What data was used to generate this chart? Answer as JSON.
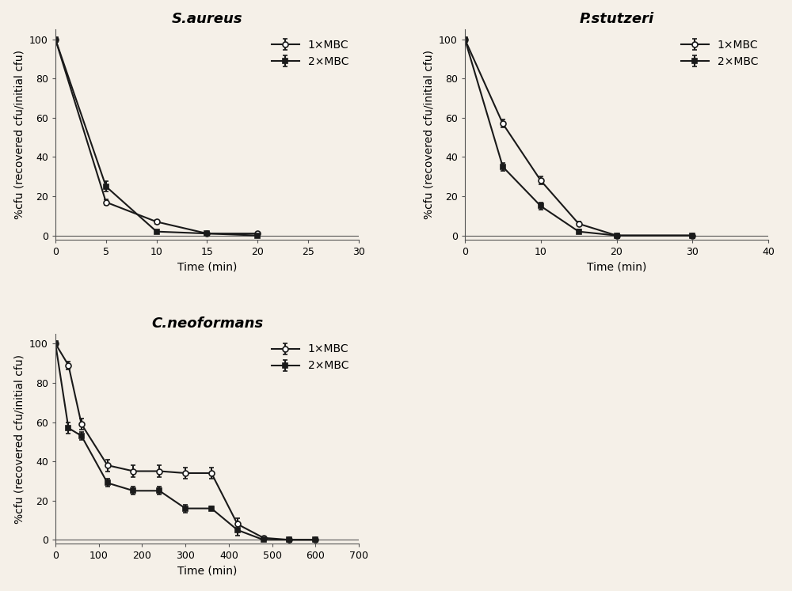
{
  "bg_color": "#f5f0e8",
  "line_color": "#1a1a1a",
  "saureus": {
    "title": "S.aureus",
    "xlabel": "Time (min)",
    "ylabel": "%cfu (recovered cfu/initial cfu)",
    "xlim": [
      0,
      30
    ],
    "ylim": [
      -2,
      105
    ],
    "xticks": [
      0,
      5,
      10,
      15,
      20,
      25,
      30
    ],
    "yticks": [
      0,
      20,
      40,
      60,
      80,
      100
    ],
    "x1mbc": [
      0,
      5,
      10,
      15,
      20
    ],
    "y1mbc": [
      100,
      17,
      7,
      1,
      1
    ],
    "x2mbc": [
      0,
      5,
      10,
      15,
      20
    ],
    "y2mbc": [
      100,
      25,
      2,
      1,
      0
    ],
    "yerr1mbc": [
      0,
      1.5,
      1,
      0.5,
      0.5
    ],
    "yerr2mbc": [
      0,
      2.5,
      0.5,
      0.5,
      0
    ]
  },
  "pstutzeri": {
    "title": "P.stutzeri",
    "xlabel": "Time (min)",
    "ylabel": "%cfu (recovered cfu/initial cfu)",
    "xlim": [
      0,
      40
    ],
    "ylim": [
      -2,
      105
    ],
    "xticks": [
      0,
      10,
      20,
      30,
      40
    ],
    "yticks": [
      0,
      20,
      40,
      60,
      80,
      100
    ],
    "x1mbc": [
      0,
      5,
      10,
      15,
      20,
      30
    ],
    "y1mbc": [
      100,
      57,
      28,
      6,
      0,
      0
    ],
    "x2mbc": [
      0,
      5,
      10,
      15,
      20,
      30
    ],
    "y2mbc": [
      100,
      35,
      15,
      2,
      0,
      0
    ],
    "yerr1mbc": [
      0,
      2,
      2,
      1,
      0,
      0
    ],
    "yerr2mbc": [
      0,
      2,
      2,
      1,
      0,
      0
    ]
  },
  "cneoformans": {
    "title": "C.neoformans",
    "xlabel": "Time (min)",
    "ylabel": "%cfu (recovered cfu/initial cfu)",
    "xlim": [
      0,
      700
    ],
    "ylim": [
      -2,
      105
    ],
    "xticks": [
      0,
      100,
      200,
      300,
      400,
      500,
      600,
      700
    ],
    "yticks": [
      0,
      20,
      40,
      60,
      80,
      100
    ],
    "x1mbc": [
      0,
      30,
      60,
      120,
      180,
      240,
      300,
      360,
      420,
      480,
      540,
      600
    ],
    "y1mbc": [
      100,
      89,
      59,
      38,
      35,
      35,
      34,
      34,
      8,
      1,
      0,
      0
    ],
    "x2mbc": [
      0,
      30,
      60,
      120,
      180,
      240,
      300,
      360,
      420,
      480,
      540,
      600
    ],
    "y2mbc": [
      100,
      57,
      53,
      29,
      25,
      25,
      16,
      16,
      5,
      0,
      0,
      0
    ],
    "yerr1mbc": [
      0,
      2,
      3,
      3,
      3,
      3,
      3,
      3,
      3,
      0.5,
      0,
      0
    ],
    "yerr2mbc": [
      0,
      3,
      2,
      2,
      2,
      2,
      2,
      1,
      3,
      0,
      0,
      0
    ]
  },
  "legend_1xMBC": "1×MBC",
  "legend_2xMBC": "2×MBC",
  "marker_circle": "o",
  "marker_square": "s",
  "markersize": 5,
  "linewidth": 1.5,
  "fontsize_title": 13,
  "fontsize_label": 10,
  "fontsize_tick": 9,
  "fontsize_legend": 10
}
